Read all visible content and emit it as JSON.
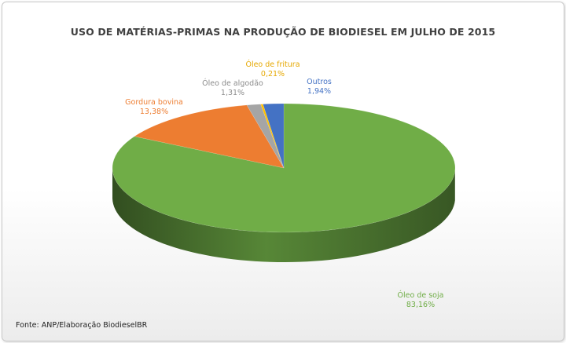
{
  "colors": {
    "soja": "#70ad47",
    "gordura": "#ed7d31",
    "algodao": "#a5a5a5",
    "fritura": "#ffc000",
    "outros": "#4472c4"
  },
  "chart_data": {
    "type": "pie",
    "title": "USO DE MATÉRIAS-PRIMAS NA PRODUÇÃO DE BIODIESEL EM JULHO DE 2015",
    "slices": [
      {
        "name": "Óleo de soja",
        "value": 83.16,
        "label": "83,16%",
        "color": "#70ad47"
      },
      {
        "name": "Gordura bovina",
        "value": 13.38,
        "label": "13,38%",
        "color": "#ed7d31"
      },
      {
        "name": "Óleo de algodão",
        "value": 1.31,
        "label": "1,31%",
        "color": "#a5a5a5"
      },
      {
        "name": "Óleo de fritura",
        "value": 0.21,
        "label": "0,21%",
        "color": "#ffc000"
      },
      {
        "name": "Outros",
        "value": 1.94,
        "label": "1,94%",
        "color": "#4472c4"
      }
    ],
    "source": "Fonte: ANP/Elaboração BiodieselBR"
  }
}
